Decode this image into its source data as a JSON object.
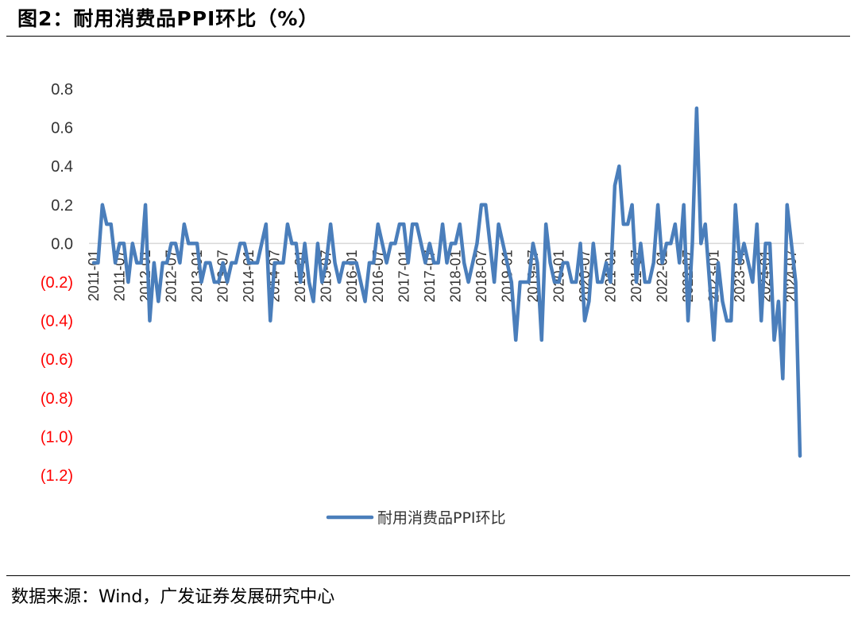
{
  "figure": {
    "title": "图2：耐用消费品PPI环比（%）",
    "source": "数据来源：Wind，广发证券发展研究中心"
  },
  "colors": {
    "series": "#4a7ebb",
    "negative_label": "#ff0000",
    "positive_label": "#333333",
    "zero_line": "#d9d9d9"
  },
  "chart_data": {
    "type": "line",
    "title": "",
    "xlabel": "",
    "ylabel": "",
    "ylim": [
      -1.2,
      0.8
    ],
    "y_ticks": [
      {
        "value": 0.8,
        "label": "0.8"
      },
      {
        "value": 0.6,
        "label": "0.6"
      },
      {
        "value": 0.4,
        "label": "0.4"
      },
      {
        "value": 0.2,
        "label": "0.2"
      },
      {
        "value": 0.0,
        "label": "0.0"
      },
      {
        "value": -0.2,
        "label": "(0.2)"
      },
      {
        "value": -0.4,
        "label": "(0.4)"
      },
      {
        "value": -0.6,
        "label": "(0.6)"
      },
      {
        "value": -0.8,
        "label": "(0.8)"
      },
      {
        "value": -1.0,
        "label": "(1.0)"
      },
      {
        "value": -1.2,
        "label": "(1.2)"
      }
    ],
    "x_start": "2011-01",
    "x_ticks": [
      "2011-01",
      "2011-07",
      "2012-01",
      "2012-07",
      "2013-01",
      "2013-07",
      "2014-01",
      "2014-07",
      "2015-01",
      "2015-07",
      "2016-01",
      "2016-07",
      "2017-01",
      "2017-07",
      "2018-01",
      "2018-07",
      "2019-01",
      "2019-07",
      "2020-01",
      "2020-07",
      "2021-01",
      "2021-07",
      "2022-01",
      "2022-07",
      "2023-01",
      "2023-07",
      "2024-01",
      "2024-07"
    ],
    "grid": false,
    "legend_position": "bottom",
    "series": [
      {
        "name": "耐用消费品PPI环比",
        "values": [
          -0.1,
          -0.1,
          0.2,
          0.1,
          0.1,
          -0.1,
          0.0,
          0.0,
          -0.2,
          0.0,
          -0.1,
          -0.1,
          0.2,
          -0.4,
          -0.1,
          -0.3,
          -0.1,
          -0.1,
          0.0,
          0.0,
          -0.1,
          0.1,
          0.0,
          0.0,
          0.0,
          -0.2,
          -0.1,
          -0.1,
          -0.2,
          -0.2,
          -0.1,
          -0.2,
          -0.1,
          -0.1,
          0.0,
          0.0,
          -0.1,
          -0.1,
          -0.1,
          0.0,
          0.1,
          -0.4,
          -0.1,
          -0.1,
          -0.1,
          0.1,
          0.0,
          0.0,
          -0.2,
          0.0,
          -0.2,
          -0.3,
          0.0,
          -0.2,
          -0.1,
          0.1,
          -0.1,
          -0.2,
          -0.1,
          -0.1,
          -0.1,
          -0.1,
          -0.2,
          -0.3,
          -0.1,
          -0.1,
          0.1,
          0.0,
          -0.1,
          0.0,
          0.0,
          0.1,
          0.1,
          -0.1,
          0.1,
          0.1,
          0.0,
          -0.1,
          0.0,
          -0.1,
          -0.1,
          0.1,
          -0.1,
          0.0,
          0.0,
          0.1,
          -0.1,
          -0.2,
          -0.1,
          0.0,
          0.2,
          0.2,
          0.0,
          -0.2,
          0.1,
          0.0,
          -0.1,
          -0.2,
          -0.5,
          -0.2,
          -0.2,
          -0.2,
          0.0,
          -0.1,
          -0.5,
          0.1,
          -0.1,
          -0.2,
          -0.2,
          -0.1,
          -0.1,
          -0.2,
          -0.2,
          0.0,
          -0.4,
          -0.3,
          0.0,
          -0.2,
          -0.2,
          -0.1,
          -0.2,
          0.3,
          0.4,
          0.1,
          0.1,
          0.2,
          -0.2,
          0.0,
          -0.2,
          -0.2,
          -0.1,
          0.2,
          -0.1,
          0.0,
          0.0,
          0.1,
          -0.1,
          0.2,
          -0.4,
          0.0,
          0.7,
          0.0,
          0.1,
          -0.2,
          -0.5,
          -0.1,
          -0.3,
          -0.4,
          -0.4,
          0.2,
          -0.1,
          0.0,
          -0.1,
          -0.2,
          0.1,
          -0.4,
          0.0,
          0.0,
          -0.5,
          -0.3,
          -0.7,
          0.2,
          0.0,
          -0.2,
          -1.1
        ]
      }
    ]
  }
}
